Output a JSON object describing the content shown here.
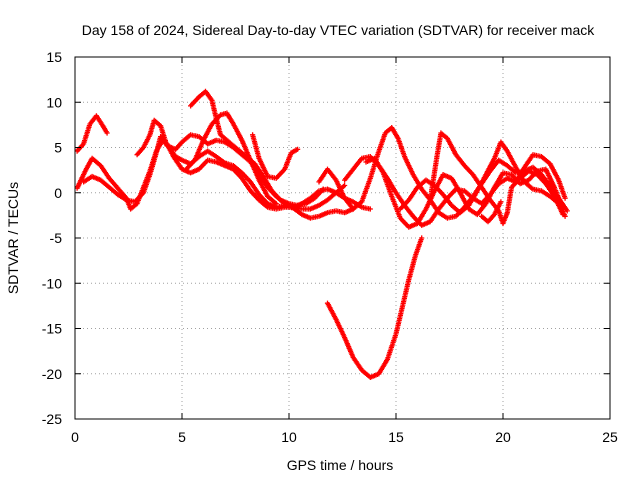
{
  "chart_data": {
    "type": "scatter",
    "title": "Day 158 of 2024, Sidereal Day-to-day VTEC variation (SDTVAR) for receiver mack",
    "xlabel": "GPS time / hours",
    "ylabel": "SDTVAR / TECUs",
    "xlim": [
      0,
      25
    ],
    "ylim": [
      -25,
      15
    ],
    "xticks": [
      0,
      5,
      10,
      15,
      20,
      25
    ],
    "yticks": [
      -25,
      -20,
      -15,
      -10,
      -5,
      0,
      5,
      10,
      15
    ],
    "grid": true,
    "marker": "+",
    "color": "#ff0000",
    "series": [
      {
        "name": "s1",
        "points": [
          [
            0.1,
            0.5
          ],
          [
            0.5,
            2.5
          ],
          [
            0.8,
            3.8
          ],
          [
            1.2,
            3.0
          ],
          [
            1.6,
            1.6
          ],
          [
            2.0,
            0.5
          ],
          [
            2.4,
            -0.6
          ],
          [
            2.6,
            -1.8
          ],
          [
            2.9,
            -1.2
          ],
          [
            3.2,
            0.6
          ],
          [
            3.5,
            2.4
          ],
          [
            3.8,
            4.6
          ],
          [
            4.1,
            5.8
          ],
          [
            4.4,
            5.0
          ],
          [
            4.7,
            4.0
          ],
          [
            5.0,
            3.6
          ],
          [
            5.4,
            3.2
          ],
          [
            5.8,
            4.0
          ],
          [
            6.2,
            4.6
          ],
          [
            6.6,
            4.0
          ],
          [
            7.0,
            3.3
          ],
          [
            7.4,
            3.0
          ],
          [
            7.8,
            2.2
          ],
          [
            8.2,
            1.2
          ],
          [
            8.6,
            -0.2
          ],
          [
            9.0,
            -1.2
          ],
          [
            9.4,
            -1.6
          ],
          [
            9.8,
            -1.4
          ],
          [
            10.2,
            -1.7
          ],
          [
            10.6,
            -2.4
          ],
          [
            11.0,
            -2.8
          ],
          [
            11.4,
            -2.6
          ],
          [
            11.8,
            -2.2
          ],
          [
            12.2,
            -2.0
          ],
          [
            12.6,
            -2.2
          ],
          [
            13.0,
            -1.8
          ]
        ]
      },
      {
        "name": "s2",
        "points": [
          [
            0.1,
            4.6
          ],
          [
            0.4,
            5.4
          ],
          [
            0.7,
            7.6
          ],
          [
            1.0,
            8.5
          ],
          [
            1.3,
            7.4
          ],
          [
            1.5,
            6.6
          ]
        ]
      },
      {
        "name": "s3",
        "points": [
          [
            0.4,
            1.2
          ],
          [
            0.8,
            1.8
          ],
          [
            1.2,
            1.4
          ],
          [
            1.6,
            0.6
          ],
          [
            2.0,
            -0.2
          ],
          [
            2.4,
            -0.8
          ],
          [
            2.8,
            -1.0
          ],
          [
            3.2,
            0.0
          ],
          [
            3.5,
            2.0
          ],
          [
            3.8,
            4.4
          ],
          [
            4.0,
            6.2
          ],
          [
            4.3,
            5.4
          ],
          [
            4.6,
            4.0
          ],
          [
            5.0,
            2.6
          ],
          [
            5.4,
            2.2
          ],
          [
            5.8,
            2.6
          ],
          [
            6.2,
            3.6
          ],
          [
            6.6,
            3.4
          ],
          [
            7.0,
            3.0
          ],
          [
            7.4,
            2.6
          ],
          [
            7.8,
            1.6
          ],
          [
            8.2,
            0.2
          ],
          [
            8.6,
            -0.8
          ],
          [
            9.0,
            -1.6
          ],
          [
            9.4,
            -1.8
          ],
          [
            9.8,
            -1.6
          ],
          [
            10.2,
            -1.6
          ],
          [
            10.6,
            -1.2
          ],
          [
            11.0,
            -0.6
          ],
          [
            11.4,
            0.2
          ],
          [
            11.8,
            0.4
          ],
          [
            12.2,
            0.0
          ],
          [
            12.6,
            -0.6
          ],
          [
            13.0,
            -1.0
          ],
          [
            13.4,
            -1.6
          ],
          [
            13.8,
            -1.8
          ]
        ]
      },
      {
        "name": "s4",
        "points": [
          [
            2.9,
            4.2
          ],
          [
            3.2,
            5.0
          ],
          [
            3.5,
            6.4
          ],
          [
            3.7,
            8.0
          ],
          [
            4.0,
            7.4
          ],
          [
            4.3,
            5.2
          ],
          [
            4.7,
            4.8
          ],
          [
            5.0,
            5.6
          ],
          [
            5.4,
            6.4
          ],
          [
            5.8,
            6.2
          ],
          [
            6.2,
            5.4
          ],
          [
            6.6,
            5.8
          ],
          [
            7.0,
            5.6
          ],
          [
            7.4,
            5.0
          ],
          [
            7.8,
            4.2
          ],
          [
            8.2,
            3.4
          ],
          [
            8.6,
            2.0
          ],
          [
            9.0,
            0.6
          ],
          [
            9.4,
            -0.4
          ],
          [
            9.8,
            -1.2
          ],
          [
            10.2,
            -1.6
          ],
          [
            10.6,
            -1.8
          ],
          [
            11.0,
            -1.8
          ],
          [
            11.4,
            -1.4
          ],
          [
            11.8,
            -0.8
          ],
          [
            12.2,
            0.0
          ],
          [
            12.6,
            0.8
          ]
        ]
      },
      {
        "name": "s5",
        "points": [
          [
            5.4,
            9.6
          ],
          [
            5.8,
            10.6
          ],
          [
            6.1,
            11.2
          ],
          [
            6.4,
            10.2
          ],
          [
            6.6,
            8.2
          ],
          [
            6.8,
            6.4
          ],
          [
            7.2,
            5.6
          ],
          [
            7.6,
            4.8
          ],
          [
            8.0,
            4.0
          ],
          [
            8.4,
            3.2
          ],
          [
            8.8,
            1.8
          ],
          [
            9.2,
            0.2
          ],
          [
            9.6,
            -0.8
          ],
          [
            10.0,
            -1.2
          ],
          [
            10.4,
            -1.4
          ],
          [
            10.8,
            -1.2
          ],
          [
            11.2,
            -0.6
          ],
          [
            11.6,
            0.4
          ]
        ]
      },
      {
        "name": "s6",
        "points": [
          [
            5.2,
            2.6
          ],
          [
            5.6,
            3.6
          ],
          [
            6.0,
            5.8
          ],
          [
            6.4,
            7.6
          ],
          [
            6.8,
            8.6
          ],
          [
            7.1,
            8.8
          ],
          [
            7.4,
            7.6
          ],
          [
            7.8,
            5.8
          ],
          [
            8.2,
            3.6
          ],
          [
            8.6,
            1.4
          ],
          [
            9.0,
            -0.4
          ],
          [
            9.4,
            -1.2
          ]
        ]
      },
      {
        "name": "s7",
        "points": [
          [
            8.3,
            6.4
          ],
          [
            8.6,
            3.8
          ],
          [
            9.0,
            1.8
          ],
          [
            9.4,
            1.6
          ],
          [
            9.8,
            2.6
          ],
          [
            10.1,
            4.4
          ],
          [
            10.4,
            4.8
          ]
        ]
      },
      {
        "name": "s8",
        "points": [
          [
            11.8,
            -12.2
          ],
          [
            12.2,
            -14.0
          ],
          [
            12.6,
            -16.0
          ],
          [
            13.0,
            -18.2
          ],
          [
            13.4,
            -19.6
          ],
          [
            13.8,
            -20.4
          ],
          [
            14.2,
            -20.0
          ],
          [
            14.6,
            -18.4
          ],
          [
            15.0,
            -15.6
          ],
          [
            15.3,
            -12.6
          ],
          [
            15.6,
            -9.6
          ],
          [
            15.9,
            -7.0
          ],
          [
            16.2,
            -5.0
          ]
        ]
      },
      {
        "name": "s9",
        "points": [
          [
            11.4,
            1.2
          ],
          [
            11.8,
            2.6
          ],
          [
            12.2,
            1.4
          ],
          [
            12.6,
            -0.6
          ],
          [
            13.0,
            -1.8
          ],
          [
            13.4,
            -1.0
          ],
          [
            13.8,
            1.6
          ],
          [
            14.2,
            4.6
          ],
          [
            14.5,
            6.6
          ],
          [
            14.8,
            7.2
          ],
          [
            15.1,
            6.0
          ],
          [
            15.4,
            4.0
          ],
          [
            15.8,
            2.0
          ],
          [
            16.2,
            0.4
          ],
          [
            16.6,
            -0.8
          ],
          [
            17.0,
            -2.2
          ],
          [
            17.4,
            -2.8
          ],
          [
            17.8,
            -2.6
          ],
          [
            18.2,
            -1.6
          ],
          [
            18.6,
            -0.4
          ],
          [
            19.0,
            1.0
          ],
          [
            19.4,
            2.4
          ],
          [
            19.8,
            3.6
          ],
          [
            20.2,
            3.0
          ],
          [
            20.6,
            2.2
          ],
          [
            21.0,
            2.4
          ],
          [
            21.4,
            2.8
          ],
          [
            21.8,
            2.0
          ],
          [
            22.2,
            0.8
          ],
          [
            22.6,
            -0.6
          ],
          [
            23.0,
            -2.0
          ]
        ]
      },
      {
        "name": "s10",
        "points": [
          [
            12.6,
            1.4
          ],
          [
            13.0,
            2.6
          ],
          [
            13.4,
            3.8
          ],
          [
            13.8,
            4.0
          ],
          [
            14.2,
            3.0
          ],
          [
            14.6,
            1.6
          ],
          [
            15.0,
            0.0
          ],
          [
            15.4,
            -1.4
          ],
          [
            15.8,
            -2.6
          ],
          [
            16.2,
            -3.6
          ],
          [
            16.6,
            -3.2
          ],
          [
            17.0,
            -1.8
          ],
          [
            17.4,
            -0.6
          ],
          [
            17.8,
            0.4
          ],
          [
            18.2,
            0.2
          ],
          [
            18.6,
            -0.6
          ],
          [
            19.0,
            -1.2
          ],
          [
            19.4,
            -0.2
          ],
          [
            19.8,
            1.0
          ],
          [
            20.2,
            1.6
          ],
          [
            20.6,
            1.2
          ],
          [
            21.0,
            2.8
          ],
          [
            21.4,
            4.2
          ],
          [
            21.8,
            4.0
          ],
          [
            22.2,
            3.2
          ],
          [
            22.6,
            1.4
          ],
          [
            22.9,
            -0.6
          ]
        ]
      },
      {
        "name": "s11",
        "points": [
          [
            13.6,
            3.4
          ],
          [
            14.0,
            3.8
          ],
          [
            14.4,
            2.2
          ],
          [
            14.8,
            -0.4
          ],
          [
            15.2,
            -2.8
          ],
          [
            15.6,
            -3.8
          ],
          [
            16.0,
            -3.4
          ],
          [
            16.4,
            -1.8
          ],
          [
            16.8,
            0.2
          ],
          [
            17.2,
            2.0
          ],
          [
            17.6,
            1.6
          ],
          [
            18.0,
            0.0
          ],
          [
            18.4,
            -1.8
          ],
          [
            18.8,
            -2.4
          ],
          [
            19.2,
            -1.2
          ],
          [
            19.6,
            0.6
          ],
          [
            20.0,
            2.2
          ],
          [
            20.4,
            2.0
          ],
          [
            20.8,
            1.0
          ],
          [
            21.2,
            1.4
          ],
          [
            21.6,
            2.4
          ],
          [
            22.0,
            2.6
          ],
          [
            22.4,
            0.6
          ],
          [
            22.8,
            -1.8
          ]
        ]
      },
      {
        "name": "s12",
        "points": [
          [
            16.6,
            -0.8
          ],
          [
            16.9,
            3.8
          ],
          [
            17.1,
            6.6
          ],
          [
            17.4,
            6.0
          ],
          [
            17.8,
            4.2
          ],
          [
            18.2,
            3.0
          ],
          [
            18.6,
            2.0
          ],
          [
            19.0,
            0.6
          ],
          [
            19.4,
            -0.8
          ],
          [
            19.8,
            -2.0
          ],
          [
            20.0,
            -3.4
          ],
          [
            20.2,
            -2.2
          ],
          [
            20.4,
            0.6
          ],
          [
            20.8,
            1.6
          ],
          [
            21.2,
            2.4
          ],
          [
            21.6,
            2.0
          ],
          [
            22.0,
            1.0
          ],
          [
            22.4,
            -0.4
          ],
          [
            22.8,
            -2.4
          ]
        ]
      },
      {
        "name": "s13",
        "points": [
          [
            15.2,
            -1.8
          ],
          [
            15.6,
            -0.8
          ],
          [
            16.0,
            0.6
          ],
          [
            16.4,
            1.4
          ],
          [
            16.8,
            0.8
          ],
          [
            17.2,
            -0.2
          ],
          [
            17.6,
            -1.4
          ],
          [
            18.0,
            -2.2
          ],
          [
            18.4,
            -1.4
          ],
          [
            18.8,
            0.2
          ],
          [
            19.2,
            2.0
          ],
          [
            19.6,
            3.8
          ],
          [
            19.9,
            5.6
          ],
          [
            20.2,
            4.6
          ],
          [
            20.6,
            2.8
          ],
          [
            21.0,
            1.2
          ],
          [
            21.4,
            0.4
          ],
          [
            21.8,
            0.2
          ],
          [
            22.2,
            -0.4
          ],
          [
            22.6,
            -1.2
          ],
          [
            22.9,
            -2.6
          ]
        ]
      },
      {
        "name": "s14",
        "points": [
          [
            19.0,
            -2.6
          ],
          [
            19.3,
            -3.2
          ],
          [
            19.6,
            -2.4
          ],
          [
            19.9,
            -1.0
          ]
        ]
      }
    ]
  }
}
